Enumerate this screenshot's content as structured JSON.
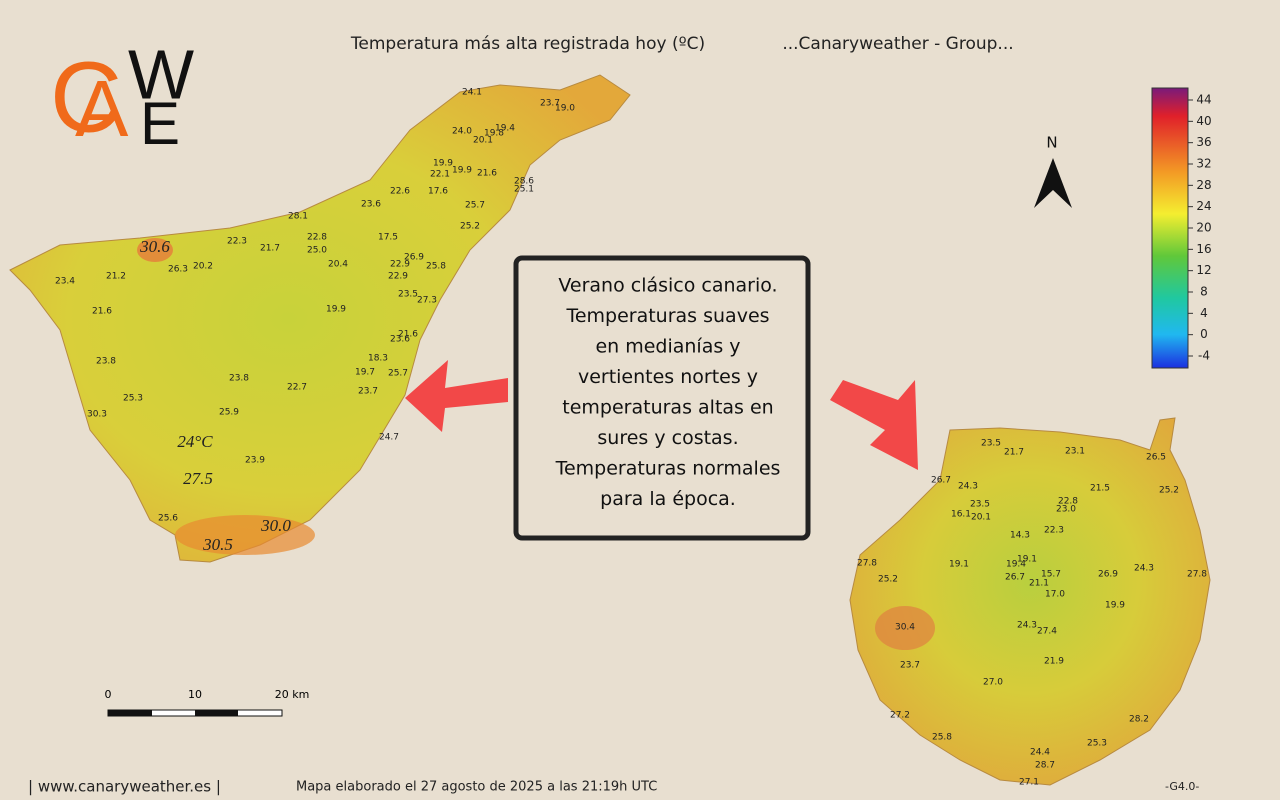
{
  "header": {
    "title": "Temperatura más alta registrada hoy (ºC)",
    "group": "...Canaryweather - Group..."
  },
  "logo": {
    "letters": [
      "C",
      "A",
      "W",
      "E"
    ]
  },
  "compass": "N",
  "legend": {
    "ticks": [
      44,
      40,
      36,
      32,
      28,
      24,
      20,
      16,
      12,
      8,
      4,
      0,
      -4
    ]
  },
  "annotation": {
    "lines": [
      "Verano clásico canario.",
      "Temperaturas suaves",
      "en medianías y",
      "vertientes nortes y",
      "temperaturas altas en",
      "sures y costas.",
      "Temperaturas normales",
      "para la época."
    ]
  },
  "tenerife": {
    "stations": [
      "24.1",
      "23.7",
      "19.0",
      "24.0",
      "19.8",
      "19.4",
      "20.1",
      "19.9",
      "19.9",
      "22.1",
      "21.6",
      "28.6",
      "25.1",
      "22.6",
      "17.6",
      "23.6",
      "25.7",
      "28.1",
      "25.2",
      "22.3",
      "21.7",
      "22.8",
      "25.0",
      "17.5",
      "26.3",
      "20.2",
      "20.4",
      "26.9",
      "22.9",
      "25.8",
      "23.4",
      "21.2",
      "22.9",
      "23.5",
      "27.3",
      "21.6",
      "19.9",
      "21.6",
      "23.6",
      "23.8",
      "18.3",
      "19.7",
      "25.7",
      "23.8",
      "22.7",
      "23.7",
      "25.3",
      "30.3",
      "25.9",
      "23.9",
      "24.7",
      "25.6"
    ],
    "highlights": [
      "30.6",
      "24°C",
      "27.5",
      "30.0",
      "30.5"
    ]
  },
  "gran_canaria": {
    "stations": [
      "23.5",
      "21.7",
      "23.1",
      "26.5",
      "26.7",
      "24.3",
      "21.5",
      "25.2",
      "22.8",
      "23.0",
      "23.5",
      "16.1",
      "20.1",
      "14.3",
      "22.3",
      "19.1",
      "19.4",
      "19.1",
      "27.8",
      "26.7",
      "15.7",
      "21.1",
      "26.9",
      "24.3",
      "27.8",
      "25.2",
      "17.0",
      "19.9",
      "30.4",
      "24.3",
      "27.4",
      "23.7",
      "21.9",
      "27.0",
      "27.2",
      "28.2",
      "25.8",
      "25.3",
      "24.4",
      "28.7",
      "27.1"
    ]
  },
  "scale": {
    "labels": [
      "0",
      "10",
      "20 km"
    ]
  },
  "footer": {
    "site": "| www.canaryweather.es |",
    "made": "Mapa elaborado el 27 agosto de 2025 a las 21:19h UTC",
    "version": "-G4.0-"
  }
}
